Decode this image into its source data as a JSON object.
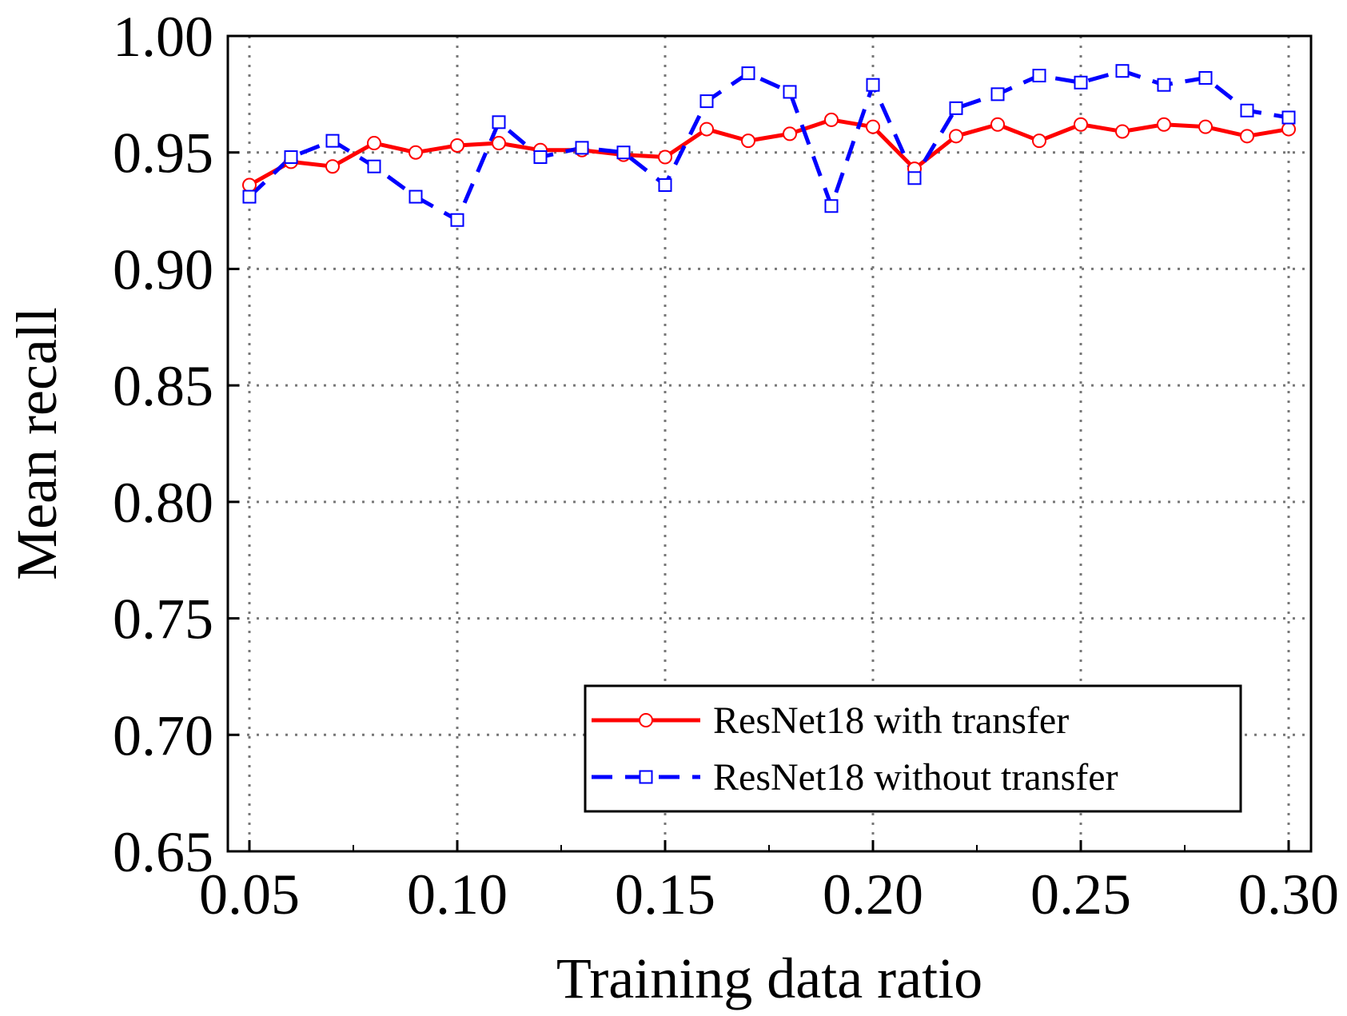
{
  "chart_data": {
    "type": "line",
    "xlabel": "Training data ratio",
    "ylabel": "Mean recall",
    "xlim": [
      0.05,
      0.3
    ],
    "ylim": [
      0.65,
      1.0
    ],
    "x_ticks": [
      "0.05",
      "0.10",
      "0.15",
      "0.20",
      "0.25",
      "0.30"
    ],
    "y_ticks": [
      "0.65",
      "0.70",
      "0.75",
      "0.80",
      "0.85",
      "0.90",
      "0.95",
      "1.00"
    ],
    "grid": true,
    "legend_position": "bottom-right",
    "x": [
      0.05,
      0.06,
      0.07,
      0.08,
      0.09,
      0.1,
      0.11,
      0.12,
      0.13,
      0.14,
      0.15,
      0.16,
      0.17,
      0.18,
      0.19,
      0.2,
      0.21,
      0.22,
      0.23,
      0.24,
      0.25,
      0.26,
      0.27,
      0.28,
      0.29,
      0.3
    ],
    "series": [
      {
        "name": "ResNet18 with transfer",
        "color": "#ff0000",
        "line_style": "solid",
        "marker": "circle",
        "values": [
          0.936,
          0.946,
          0.944,
          0.954,
          0.95,
          0.953,
          0.954,
          0.951,
          0.951,
          0.949,
          0.948,
          0.96,
          0.955,
          0.958,
          0.964,
          0.961,
          0.943,
          0.957,
          0.962,
          0.955,
          0.962,
          0.959,
          0.962,
          0.961,
          0.957,
          0.96
        ]
      },
      {
        "name": "ResNet18 without transfer",
        "color": "#0000ff",
        "line_style": "dashed",
        "marker": "square",
        "values": [
          0.931,
          0.948,
          0.955,
          0.944,
          0.931,
          0.921,
          0.963,
          0.948,
          0.952,
          0.95,
          0.936,
          0.972,
          0.984,
          0.976,
          0.927,
          0.979,
          0.939,
          0.969,
          0.975,
          0.983,
          0.98,
          0.985,
          0.979,
          0.982,
          0.968,
          0.965
        ]
      }
    ]
  }
}
